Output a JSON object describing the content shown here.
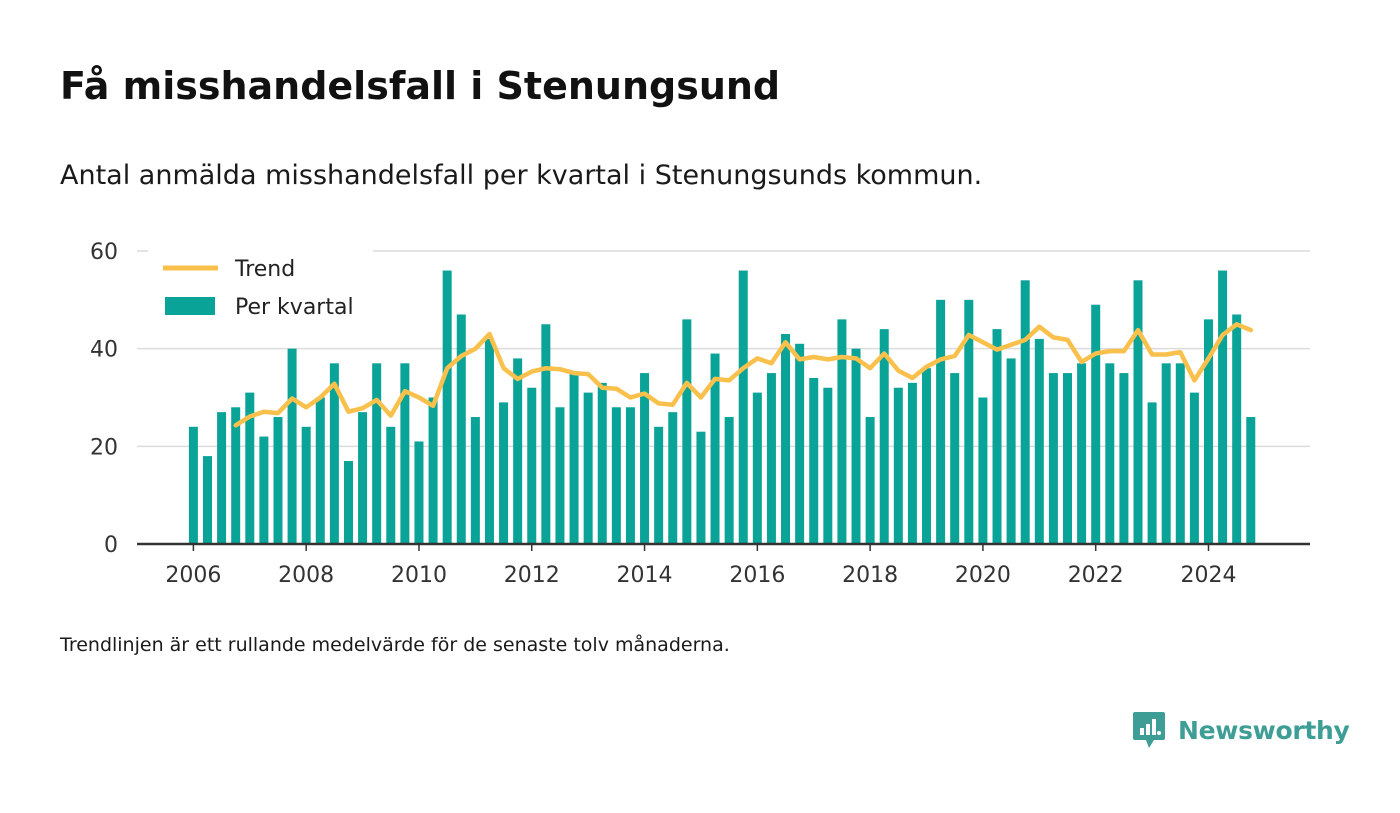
{
  "title": "Få misshandelsfall i Stenungsund",
  "subtitle": "Antal anmälda misshandelsfall per kvartal i Stenungsunds kommun.",
  "note": "Trendlinjen är ett rullande medelvärde för de senaste tolv månaderna.",
  "brand": "Newsworthy",
  "colors": {
    "bar": "#0aa398",
    "trend": "#f9c04c",
    "grid": "#dcdcdc",
    "axis": "#333333",
    "brand": "#3e9e95"
  },
  "chart_data": {
    "type": "bar",
    "grid": true,
    "legend_position": "top-left",
    "ylim": [
      0,
      60
    ],
    "yticks": [
      "0",
      "20",
      "40",
      "60"
    ],
    "xticks": [
      "2006",
      "2008",
      "2010",
      "2012",
      "2014",
      "2016",
      "2018",
      "2020",
      "2022",
      "2024"
    ],
    "xlim": [
      2005,
      2025.8
    ],
    "x": [
      2006.0,
      2006.25,
      2006.5,
      2006.75,
      2007.0,
      2007.25,
      2007.5,
      2007.75,
      2008.0,
      2008.25,
      2008.5,
      2008.75,
      2009.0,
      2009.25,
      2009.5,
      2009.75,
      2010.0,
      2010.25,
      2010.5,
      2010.75,
      2011.0,
      2011.25,
      2011.5,
      2011.75,
      2012.0,
      2012.25,
      2012.5,
      2012.75,
      2013.0,
      2013.25,
      2013.5,
      2013.75,
      2014.0,
      2014.25,
      2014.5,
      2014.75,
      2015.0,
      2015.25,
      2015.5,
      2015.75,
      2016.0,
      2016.25,
      2016.5,
      2016.75,
      2017.0,
      2017.25,
      2017.5,
      2017.75,
      2018.0,
      2018.25,
      2018.5,
      2018.75,
      2019.0,
      2019.25,
      2019.5,
      2019.75,
      2020.0,
      2020.25,
      2020.5,
      2020.75,
      2021.0,
      2021.25,
      2021.5,
      2021.75,
      2022.0,
      2022.25,
      2022.5,
      2022.75,
      2023.0,
      2023.25,
      2023.5,
      2023.75,
      2024.0,
      2024.25,
      2024.5,
      2024.75
    ],
    "series": [
      {
        "name": "Per kvartal",
        "type": "bar",
        "values": [
          24,
          18,
          27,
          28,
          31,
          22,
          26,
          40,
          24,
          30,
          37,
          17,
          27,
          37,
          24,
          37,
          21,
          30,
          56,
          47,
          26,
          42,
          29,
          38,
          32,
          45,
          28,
          35,
          31,
          33,
          28,
          28,
          35,
          24,
          27,
          46,
          23,
          39,
          26,
          56,
          31,
          35,
          43,
          41,
          34,
          32,
          46,
          40,
          26,
          44,
          32,
          33,
          36,
          50,
          35,
          50,
          30,
          44,
          38,
          54,
          42,
          35,
          35,
          37,
          49,
          37,
          35,
          54,
          29,
          37,
          37,
          31,
          46,
          56,
          47,
          26
        ]
      },
      {
        "name": "Trend",
        "type": "line",
        "values": [
          null,
          null,
          null,
          24.3,
          26.1,
          27.1,
          26.8,
          29.8,
          28.0,
          30.0,
          32.8,
          27.1,
          27.8,
          29.5,
          26.3,
          31.3,
          30.0,
          28.3,
          36.0,
          38.5,
          40.0,
          43.0,
          36.0,
          33.8,
          35.3,
          36.0,
          35.8,
          35.0,
          34.8,
          32.0,
          31.8,
          30.0,
          30.8,
          28.8,
          28.5,
          33.0,
          30.0,
          33.8,
          33.5,
          36.0,
          38.0,
          37.0,
          41.3,
          37.8,
          38.3,
          37.8,
          38.3,
          38.0,
          36.0,
          39.0,
          35.5,
          34.0,
          36.3,
          37.8,
          38.5,
          42.8,
          41.3,
          39.8,
          40.8,
          41.8,
          44.5,
          42.3,
          41.8,
          37.3,
          39.0,
          39.5,
          39.5,
          43.8,
          38.8,
          38.8,
          39.3,
          33.5,
          38.0,
          42.8,
          45.0,
          43.8
        ]
      }
    ]
  }
}
